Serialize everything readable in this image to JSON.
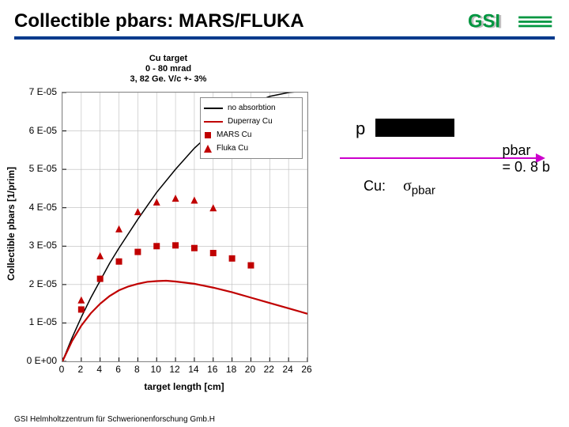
{
  "header": {
    "title": "Collectible pbars: MARS/FLUKA",
    "logo_text": "GSI"
  },
  "chart": {
    "type": "line+scatter",
    "title_lines": [
      "Cu target",
      "0 - 80 mrad",
      "3, 82 Ge. V/c +- 3%"
    ],
    "xlabel": "target length [cm]",
    "ylabel": "Collectible pbars [1/prim]",
    "xlim": [
      0,
      26
    ],
    "ylim": [
      0,
      7e-05
    ],
    "xticks": [
      0,
      2,
      4,
      6,
      8,
      10,
      12,
      14,
      16,
      18,
      20,
      22,
      24,
      26
    ],
    "yticks": [
      "0 E+00",
      "1 E-05",
      "2 E-05",
      "3 E-05",
      "4 E-05",
      "5 E-05",
      "6 E-05",
      "7 E-05"
    ],
    "grid_color": "#bbbbbb",
    "background_color": "#ffffff",
    "series": {
      "no_absorbtion": {
        "label": "no absorbtion",
        "type": "line",
        "color": "#000000",
        "width": 1.5,
        "dash": "none",
        "x": [
          0,
          1,
          2,
          3,
          4,
          5,
          6,
          8,
          10,
          12,
          14,
          16,
          18,
          20,
          22,
          24,
          26
        ],
        "y": [
          0,
          6e-06,
          1.15e-05,
          1.65e-05,
          2.1e-05,
          2.55e-05,
          2.95e-05,
          3.7e-05,
          4.4e-05,
          5e-05,
          5.55e-05,
          6e-05,
          6.4e-05,
          6.7e-05,
          6.9e-05,
          7e-05,
          7.05e-05
        ]
      },
      "duperray": {
        "label": "Duperray Cu",
        "type": "line",
        "color": "#c00000",
        "width": 2.2,
        "dash": "none",
        "x": [
          0,
          1,
          2,
          3,
          4,
          5,
          6,
          7,
          8,
          9,
          10,
          11,
          12,
          14,
          16,
          18,
          20,
          22,
          24,
          26
        ],
        "y": [
          0,
          5.2e-06,
          9.3e-06,
          1.25e-05,
          1.5e-05,
          1.7e-05,
          1.85e-05,
          1.95e-05,
          2.02e-05,
          2.07e-05,
          2.09e-05,
          2.1e-05,
          2.08e-05,
          2.02e-05,
          1.92e-05,
          1.8e-05,
          1.66e-05,
          1.52e-05,
          1.38e-05,
          1.24e-05
        ]
      },
      "mars": {
        "label": "MARS Cu",
        "type": "scatter",
        "marker": "square",
        "color": "#c00000",
        "size": 8,
        "x": [
          2,
          4,
          6,
          8,
          10,
          12,
          14,
          16,
          18,
          20
        ],
        "y": [
          1.35e-05,
          2.15e-05,
          2.6e-05,
          2.85e-05,
          3e-05,
          3.02e-05,
          2.95e-05,
          2.82e-05,
          2.68e-05,
          2.5e-05
        ]
      },
      "fluka": {
        "label": "Fluka Cu",
        "type": "scatter",
        "marker": "triangle",
        "color": "#c00000",
        "size": 9,
        "x": [
          2,
          4,
          6,
          8,
          10,
          12,
          14,
          16
        ],
        "y": [
          1.6e-05,
          2.75e-05,
          3.45e-05,
          3.9e-05,
          4.15e-05,
          4.25e-05,
          4.2e-05,
          4e-05
        ]
      }
    },
    "legend": {
      "items": [
        "no_absorbtion",
        "duperray",
        "mars",
        "fluka"
      ]
    }
  },
  "side": {
    "p_label": "p",
    "arrow_color": "#cc00cc",
    "cu_label": "Cu:",
    "sigma_label_html": "σ",
    "sigma_sub": "pbar",
    "pbar_label": "pbar",
    "eq_value": "= 0. 8 b"
  },
  "footer": {
    "text": "GSI Helmholtzzentrum für Schwerionenforschung Gmb.H"
  },
  "colors": {
    "header_rule": "#003a8c",
    "logo_green": "#009640",
    "logo_grey": "#bfbfbf"
  }
}
